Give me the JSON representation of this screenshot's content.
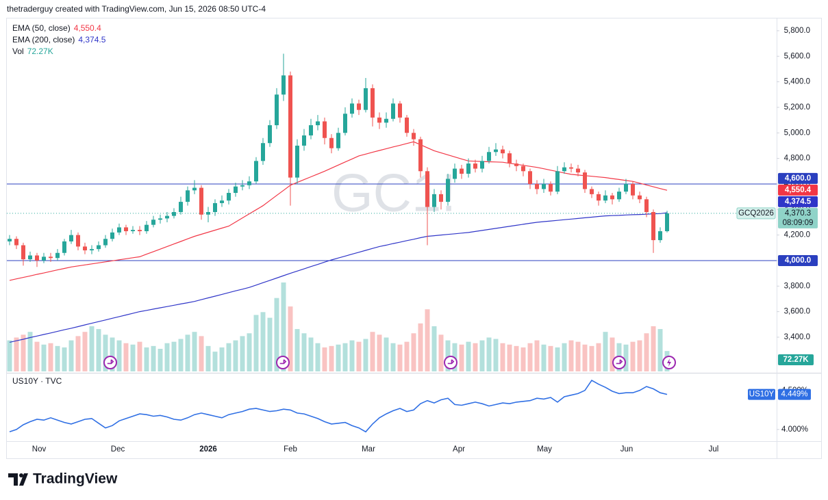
{
  "header": "thetraderguy created with TradingView.com, Jun 15, 2026 08:50 UTC-4",
  "footer": {
    "logo": "TradingView"
  },
  "chart_data": [
    {
      "type": "candlestick",
      "watermark": "GC1!",
      "ylim": [
        3132,
        5896
      ],
      "yticks": [
        {
          "value": 3400,
          "label": "3,400.0"
        },
        {
          "value": 3600,
          "label": "3,600.0"
        },
        {
          "value": 3800,
          "label": "3,800.0"
        },
        {
          "value": 4000,
          "label": "4,000.0"
        },
        {
          "value": 4200,
          "label": "4,200.0"
        },
        {
          "value": 4400,
          "label": "4,400.0"
        },
        {
          "value": 4600,
          "label": "4,600.0"
        },
        {
          "value": 4800,
          "label": "4,800.0"
        },
        {
          "value": 5000,
          "label": "5,000.0"
        },
        {
          "value": 5200,
          "label": "5,200.0"
        },
        {
          "value": 5400,
          "label": "5,400.0"
        },
        {
          "value": 5600,
          "label": "5,600.0"
        },
        {
          "value": 5800,
          "label": "5,800.0"
        }
      ],
      "up_color": "#26a69a",
      "down_color": "#ef5350",
      "open": [
        4150,
        4170,
        4120,
        4010,
        4040,
        4000,
        4030,
        4020,
        4060,
        4150,
        4200,
        4110,
        4080,
        4090,
        4120,
        4170,
        4220,
        4260,
        4230,
        4240,
        4230,
        4280,
        4320,
        4330,
        4350,
        4380,
        4460,
        4550,
        4570,
        4360,
        4380,
        4450,
        4470,
        4530,
        4580,
        4590,
        4620,
        4780,
        4920,
        5060,
        5300,
        5450,
        4650,
        4900,
        4980,
        5060,
        5090,
        4960,
        4880,
        5000,
        5150,
        5230,
        5180,
        5350,
        5120,
        5080,
        5110,
        5230,
        5120,
        5000,
        4950,
        4700,
        4420,
        4520,
        4460,
        4640,
        4720,
        4680,
        4760,
        4720,
        4780,
        4850,
        4870,
        4840,
        4760,
        4740,
        4700,
        4600,
        4560,
        4600,
        4540,
        4700,
        4730,
        4720,
        4690,
        4560,
        4520,
        4470,
        4510,
        4480,
        4540,
        4600,
        4510,
        4480,
        4380,
        4160,
        4230
      ],
      "high": [
        4200,
        4190,
        4140,
        4070,
        4060,
        4060,
        4060,
        4090,
        4170,
        4240,
        4220,
        4140,
        4120,
        4150,
        4200,
        4250,
        4290,
        4280,
        4270,
        4270,
        4310,
        4350,
        4360,
        4380,
        4410,
        4500,
        4580,
        4630,
        4590,
        4420,
        4480,
        4510,
        4560,
        4610,
        4630,
        4660,
        4810,
        4960,
        5100,
        5350,
        5620,
        5480,
        4950,
        5030,
        5110,
        5140,
        5120,
        4990,
        5040,
        5200,
        5270,
        5260,
        5430,
        5380,
        5160,
        5160,
        5270,
        5250,
        5140,
        5030,
        4970,
        4730,
        4560,
        4550,
        4680,
        4760,
        4750,
        4800,
        4790,
        4820,
        4890,
        4920,
        4900,
        4860,
        4790,
        4760,
        4720,
        4630,
        4640,
        4620,
        4740,
        4770,
        4760,
        4750,
        4710,
        4580,
        4540,
        4550,
        4530,
        4570,
        4640,
        4620,
        4540,
        4500,
        4400,
        4260,
        4390
      ],
      "low": [
        4120,
        4090,
        3960,
        3990,
        3950,
        3980,
        3990,
        4000,
        4040,
        4130,
        4080,
        4050,
        4050,
        4070,
        4100,
        4150,
        4200,
        4200,
        4210,
        4200,
        4210,
        4260,
        4290,
        4300,
        4330,
        4360,
        4430,
        4520,
        4320,
        4300,
        4350,
        4420,
        4440,
        4500,
        4550,
        4560,
        4600,
        4750,
        4890,
        5030,
        5250,
        4430,
        4600,
        4860,
        4950,
        5020,
        4910,
        4840,
        4860,
        4980,
        5120,
        5140,
        5160,
        5050,
        5030,
        5040,
        5090,
        5080,
        4970,
        4900,
        4650,
        4120,
        4380,
        4400,
        4430,
        4610,
        4640,
        4650,
        4690,
        4690,
        4760,
        4820,
        4800,
        4730,
        4700,
        4660,
        4560,
        4520,
        4530,
        4510,
        4520,
        4680,
        4690,
        4660,
        4530,
        4490,
        4430,
        4450,
        4440,
        4460,
        4520,
        4480,
        4450,
        4340,
        4060,
        4140,
        4220
      ],
      "close": [
        4170,
        4120,
        4010,
        4040,
        4000,
        4030,
        4020,
        4060,
        4150,
        4200,
        4110,
        4080,
        4090,
        4120,
        4170,
        4220,
        4260,
        4230,
        4240,
        4230,
        4280,
        4320,
        4330,
        4350,
        4380,
        4460,
        4550,
        4570,
        4360,
        4380,
        4450,
        4470,
        4530,
        4580,
        4590,
        4620,
        4780,
        4920,
        5060,
        5300,
        5450,
        4650,
        4900,
        4980,
        5060,
        5090,
        4960,
        4880,
        5000,
        5150,
        5230,
        5180,
        5350,
        5120,
        5080,
        5110,
        5230,
        5120,
        5000,
        4950,
        4700,
        4420,
        4520,
        4460,
        4640,
        4720,
        4680,
        4760,
        4720,
        4780,
        4850,
        4870,
        4840,
        4760,
        4740,
        4700,
        4600,
        4560,
        4600,
        4540,
        4700,
        4730,
        4720,
        4690,
        4560,
        4520,
        4470,
        4510,
        4480,
        4540,
        4600,
        4510,
        4480,
        4380,
        4160,
        4230,
        4370.3
      ],
      "volume": {
        "name": "Vol",
        "value_label": "72.27K",
        "label_color": "#26a69a",
        "ylim": [
          0,
          1250
        ],
        "values": [
          110,
          120,
          130,
          140,
          105,
          95,
          100,
          90,
          85,
          110,
          125,
          140,
          160,
          150,
          130,
          120,
          110,
          100,
          95,
          105,
          85,
          90,
          80,
          100,
          105,
          115,
          130,
          140,
          125,
          90,
          70,
          85,
          100,
          110,
          125,
          135,
          200,
          210,
          190,
          260,
          315,
          230,
          150,
          135,
          120,
          100,
          85,
          90,
          95,
          100,
          110,
          105,
          115,
          140,
          130,
          120,
          100,
          95,
          105,
          135,
          170,
          220,
          160,
          130,
          110,
          100,
          95,
          105,
          100,
          110,
          120,
          115,
          100,
          95,
          90,
          85,
          100,
          110,
          95,
          90,
          85,
          100,
          110,
          105,
          95,
          90,
          100,
          140,
          120,
          100,
          95,
          105,
          110,
          135,
          160,
          150,
          72.27
        ]
      },
      "indicators": [
        {
          "name": "EMA (50, close)",
          "color": "#f23645",
          "value_label": "4,550.4",
          "values": [
            3845,
            3857,
            3868,
            3880,
            3892,
            3903,
            3915,
            3927,
            3938,
            3950,
            3958,
            3966,
            3974,
            3982,
            3990,
            3998,
            4006,
            4014,
            4022,
            4030,
            4050,
            4070,
            4090,
            4110,
            4130,
            4150,
            4170,
            4190,
            4206,
            4222,
            4238,
            4254,
            4270,
            4302,
            4334,
            4366,
            4398,
            4430,
            4470,
            4510,
            4550,
            4590,
            4612,
            4634,
            4656,
            4678,
            4700,
            4724,
            4748,
            4772,
            4796,
            4820,
            4834,
            4848,
            4862,
            4876,
            4890,
            4903,
            4917,
            4930,
            4907,
            4883,
            4860,
            4844,
            4828,
            4812,
            4796,
            4780,
            4778,
            4776,
            4774,
            4772,
            4770,
            4762,
            4754,
            4746,
            4738,
            4730,
            4719,
            4708,
            4697,
            4686,
            4675,
            4670,
            4665,
            4660,
            4655,
            4650,
            4642,
            4635,
            4627,
            4620,
            4606,
            4592,
            4578,
            4564,
            4550.4
          ]
        },
        {
          "name": "EMA (200, close)",
          "color": "#2f35c8",
          "value_label": "4,374.5",
          "values": [
            3360,
            3372,
            3384,
            3397,
            3409,
            3421,
            3433,
            3446,
            3458,
            3470,
            3483,
            3496,
            3509,
            3522,
            3535,
            3548,
            3561,
            3574,
            3587,
            3600,
            3610,
            3620,
            3630,
            3640,
            3650,
            3660,
            3670,
            3680,
            3694,
            3708,
            3721,
            3735,
            3749,
            3763,
            3776,
            3790,
            3808,
            3827,
            3845,
            3863,
            3882,
            3900,
            3918,
            3935,
            3953,
            3970,
            3988,
            4005,
            4020,
            4035,
            4050,
            4065,
            4080,
            4095,
            4110,
            4121,
            4133,
            4144,
            4156,
            4167,
            4179,
            4190,
            4195,
            4200,
            4205,
            4210,
            4215,
            4220,
            4228,
            4236,
            4244,
            4252,
            4260,
            4268,
            4276,
            4284,
            4292,
            4300,
            4305,
            4310,
            4315,
            4320,
            4325,
            4330,
            4335,
            4340,
            4345,
            4350,
            4352,
            4354,
            4357,
            4359,
            4361,
            4363,
            4366,
            4368,
            4374.5
          ]
        }
      ],
      "hlines": [
        {
          "value": 4600,
          "label": "4,600.0"
        },
        {
          "value": 4000,
          "label": "4,000.0"
        }
      ],
      "hline_color": "#2a3fbf",
      "last": {
        "symbol": "GCQ2026",
        "value": 4370.3,
        "label": "4,370.3",
        "countdown": "08:09:09"
      },
      "x_labels": [
        "Nov",
        "Dec",
        "2026",
        "Feb",
        "Mar",
        "Apr",
        "May",
        "Jun",
        "Jul"
      ]
    },
    {
      "type": "line",
      "title": "US10Y · TVC",
      "symbol": "US10Y",
      "color": "#2f6fe4",
      "value_label": "4.449%",
      "ylim": [
        3.85,
        4.7
      ],
      "yticks": [
        {
          "value": 4.0,
          "label": "4.000%"
        },
        {
          "value": 4.5,
          "label": "4.500%"
        }
      ],
      "values": [
        3.97,
        4.0,
        4.06,
        4.1,
        4.13,
        4.12,
        4.15,
        4.12,
        4.09,
        4.07,
        4.1,
        4.13,
        4.14,
        4.08,
        4.02,
        4.05,
        4.11,
        4.14,
        4.17,
        4.2,
        4.19,
        4.17,
        4.18,
        4.16,
        4.13,
        4.12,
        4.15,
        4.19,
        4.21,
        4.19,
        4.17,
        4.15,
        4.19,
        4.21,
        4.23,
        4.26,
        4.27,
        4.25,
        4.23,
        4.24,
        4.26,
        4.25,
        4.21,
        4.2,
        4.17,
        4.14,
        4.1,
        4.07,
        4.08,
        4.09,
        4.05,
        4.02,
        3.97,
        4.07,
        4.15,
        4.2,
        4.24,
        4.27,
        4.23,
        4.25,
        4.33,
        4.37,
        4.34,
        4.38,
        4.4,
        4.32,
        4.31,
        4.33,
        4.35,
        4.33,
        4.3,
        4.32,
        4.34,
        4.33,
        4.35,
        4.36,
        4.37,
        4.4,
        4.39,
        4.41,
        4.35,
        4.42,
        4.44,
        4.46,
        4.5,
        4.63,
        4.58,
        4.54,
        4.49,
        4.46,
        4.47,
        4.47,
        4.5,
        4.55,
        4.52,
        4.47,
        4.449
      ]
    }
  ]
}
